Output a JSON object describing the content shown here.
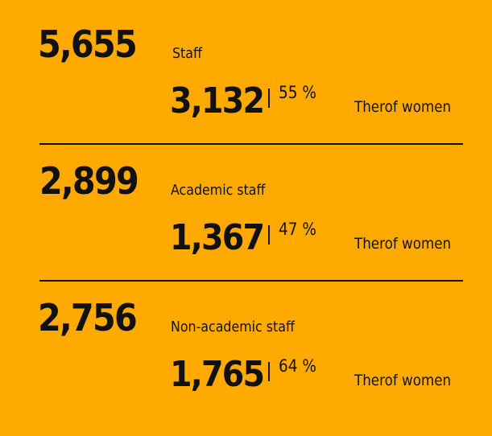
{
  "background_color": "#FFAA00",
  "sections": [
    {
      "total": "5,655",
      "label": "Staff",
      "women": "3,132",
      "percent": "55 %",
      "women_label": "Therof women"
    },
    {
      "total": "2,899",
      "label": "Academic staff",
      "women": "1,367",
      "percent": "47 %",
      "women_label": "Therof women"
    },
    {
      "total": "2,756",
      "label": "Non-academic staff",
      "women": "1,765",
      "percent": "64 %",
      "women_label": "Therof women"
    }
  ]
}
